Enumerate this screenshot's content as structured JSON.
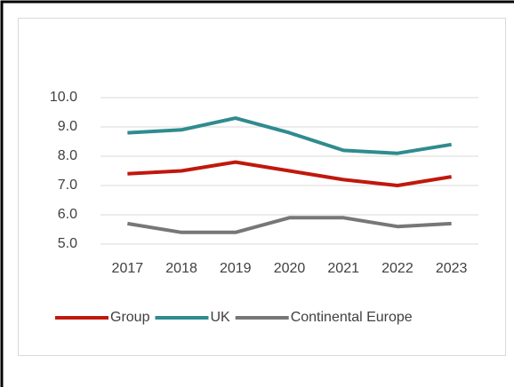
{
  "chart_data": {
    "type": "line",
    "categories": [
      "2017",
      "2018",
      "2019",
      "2020",
      "2021",
      "2022",
      "2023"
    ],
    "series": [
      {
        "name": "Group",
        "color": "#c0180c",
        "values": [
          7.4,
          7.5,
          7.8,
          7.5,
          7.2,
          7.0,
          7.3
        ]
      },
      {
        "name": "UK",
        "color": "#2f8b8f",
        "values": [
          8.8,
          8.9,
          9.3,
          8.8,
          8.2,
          8.1,
          8.4
        ]
      },
      {
        "name": "Continental Europe",
        "color": "#777777",
        "values": [
          5.7,
          5.4,
          5.4,
          5.9,
          5.9,
          5.6,
          5.7
        ]
      }
    ],
    "ylim": [
      5,
      10
    ],
    "yticks": [
      {
        "value": 5,
        "label": "5.0"
      },
      {
        "value": 6,
        "label": "6.0"
      },
      {
        "value": 7,
        "label": "7.0"
      },
      {
        "value": 8,
        "label": "8.0"
      },
      {
        "value": 9,
        "label": "9.0"
      },
      {
        "value": 10,
        "label": "10.0"
      }
    ],
    "grid": true,
    "legend": "bottom"
  }
}
